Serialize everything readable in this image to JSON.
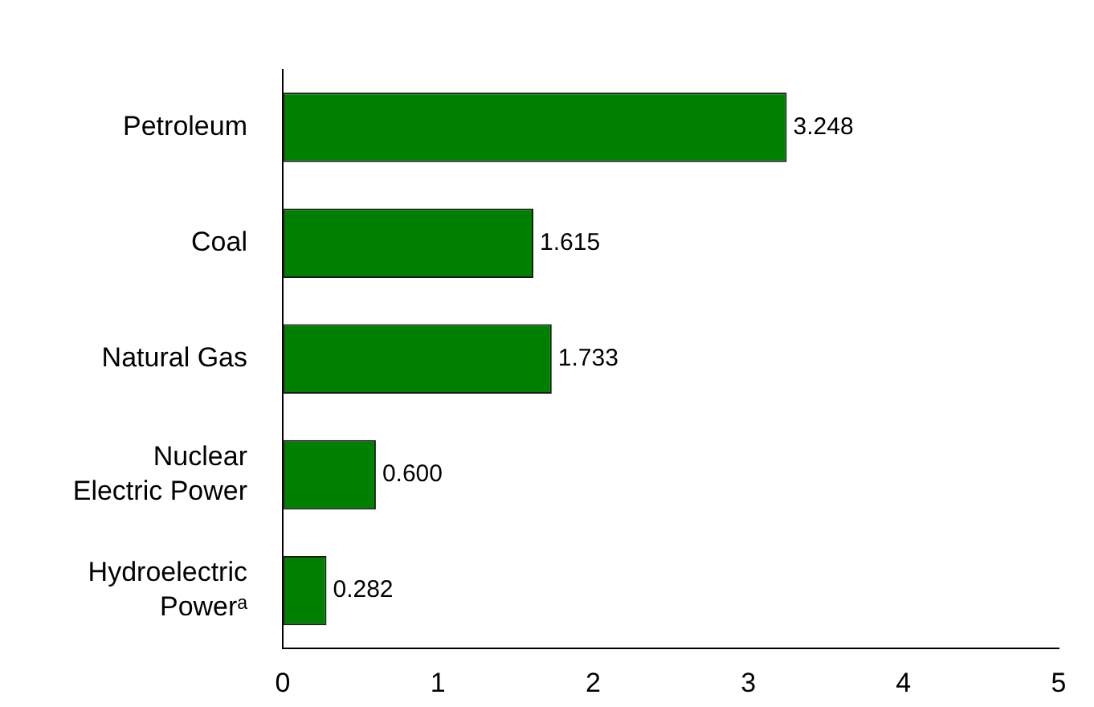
{
  "chart_data": {
    "type": "bar",
    "orientation": "horizontal",
    "categories": [
      "Petroleum",
      "Coal",
      "Natural Gas",
      "Nuclear\nElectric Power",
      "Hydroelectric\nPowerᵃ"
    ],
    "values": [
      3.248,
      1.615,
      1.733,
      0.6,
      0.282
    ],
    "value_labels": [
      "3.248",
      "1.615",
      "1.733",
      "0.600",
      "0.282"
    ],
    "color": "#008000",
    "xlim": [
      0,
      5
    ],
    "xticks": [
      0,
      1,
      2,
      3,
      4,
      5
    ],
    "grid": false,
    "legend": false
  }
}
